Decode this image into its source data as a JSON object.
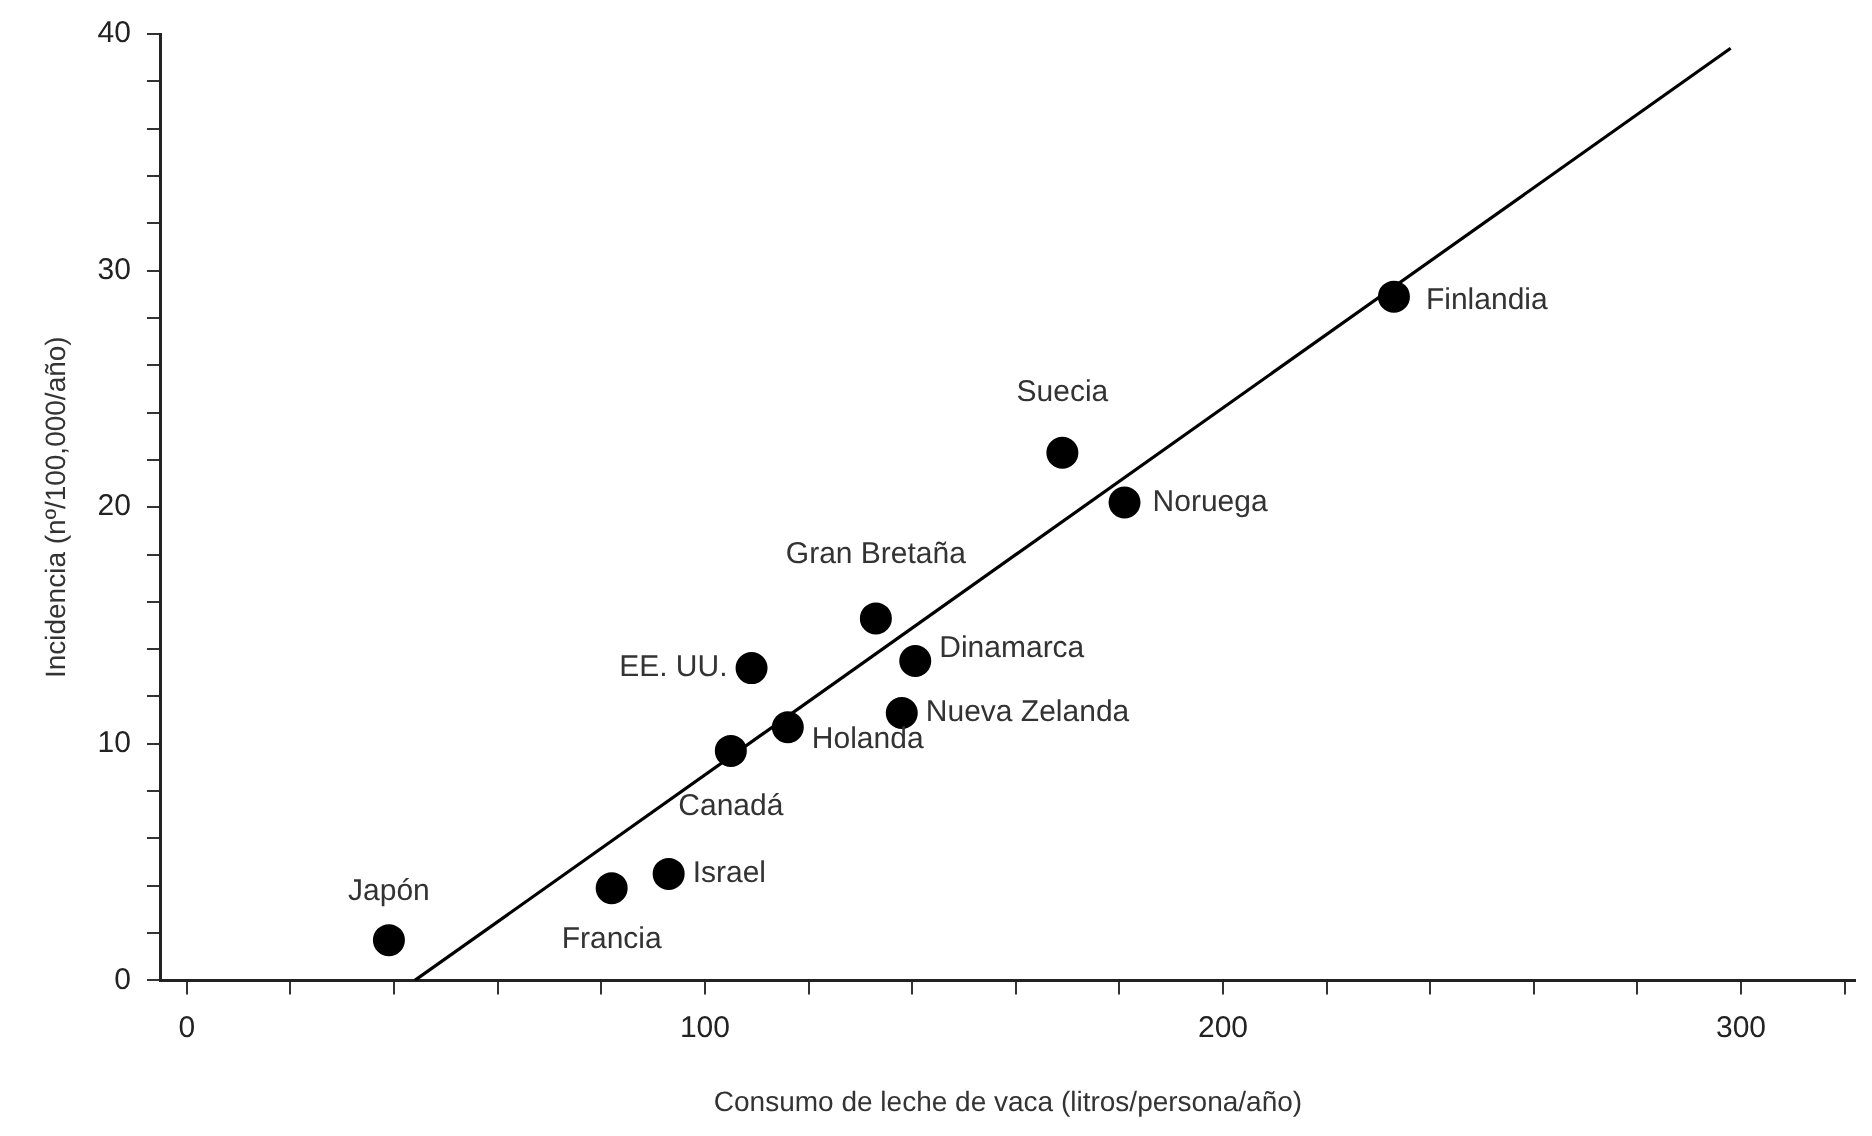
{
  "chart_data": {
    "type": "scatter",
    "xlabel": "Consumo de leche de vaca (litros/persona/año)",
    "ylabel": "Incidencia (nº/100,000/año)",
    "xlim": [
      -5,
      322
    ],
    "xticks": [
      0,
      {
        "value": 20,
        "label": null
      },
      {
        "value": 40,
        "label": null
      },
      {
        "value": 60,
        "label": null
      },
      {
        "value": 80,
        "label": null
      },
      100,
      {
        "value": 120,
        "label": null
      },
      {
        "value": 140,
        "label": null
      },
      {
        "value": 160,
        "label": null
      },
      {
        "value": 180,
        "label": null
      },
      200,
      {
        "value": 220,
        "label": null
      },
      {
        "value": 240,
        "label": null
      },
      {
        "value": 260,
        "label": null
      },
      {
        "value": 280,
        "label": null
      },
      300,
      {
        "value": 320,
        "label": null
      }
    ],
    "ylim": [
      0,
      40
    ],
    "yticks": [
      0,
      {
        "value": 2,
        "label": null
      },
      {
        "value": 4,
        "label": null
      },
      {
        "value": 6,
        "label": null
      },
      {
        "value": 8,
        "label": null
      },
      10,
      {
        "value": 12,
        "label": null
      },
      {
        "value": 14,
        "label": null
      },
      {
        "value": 16,
        "label": null
      },
      {
        "value": 18,
        "label": null
      },
      20,
      {
        "value": 22,
        "label": null
      },
      {
        "value": 24,
        "label": null
      },
      {
        "value": 26,
        "label": null
      },
      {
        "value": 28,
        "label": null
      },
      30,
      {
        "value": 32,
        "label": null
      },
      {
        "value": 34,
        "label": null
      },
      {
        "value": 36,
        "label": null
      },
      {
        "value": 38,
        "label": null
      },
      40
    ],
    "grid": false,
    "legend": false,
    "marker": "circle",
    "series": [
      {
        "color": "#000000",
        "x": [
          39,
          82,
          93,
          105,
          116,
          109,
          133,
          140.6,
          138,
          169,
          181,
          233
        ],
        "values": [
          1.7,
          3.9,
          4.5,
          9.7,
          10.7,
          13.2,
          15.3,
          13.5,
          11.3,
          22.3,
          20.2,
          28.9
        ]
      },
      {
        "type": "line",
        "color": "#000000",
        "x": [
          44,
          298
        ],
        "values": [
          0,
          39.4
        ],
        "marker": "none",
        "line_style": "solid"
      }
    ],
    "annotations": [
      {
        "text": "Japón",
        "x": 39,
        "y": 1.7
      },
      {
        "text": "Francia",
        "x": 82,
        "y": 3.9
      },
      {
        "text": "Israel",
        "x": 93,
        "y": 4.5
      },
      {
        "text": "Canadá",
        "x": 105,
        "y": 9.7
      },
      {
        "text": "Holanda",
        "x": 116,
        "y": 10.7
      },
      {
        "text": "EE. UU.",
        "x": 109,
        "y": 13.2
      },
      {
        "text": "Gran Bretaña",
        "x": 133,
        "y": 15.3
      },
      {
        "text": "Dinamarca",
        "x": 140.6,
        "y": 13.5
      },
      {
        "text": "Nueva Zelanda",
        "x": 138,
        "y": 11.3
      },
      {
        "text": "Suecia",
        "x": 169,
        "y": 22.3
      },
      {
        "text": "Noruega",
        "x": 181,
        "y": 20.2
      },
      {
        "text": "Finlandia",
        "x": 233,
        "y": 28.9
      }
    ]
  }
}
